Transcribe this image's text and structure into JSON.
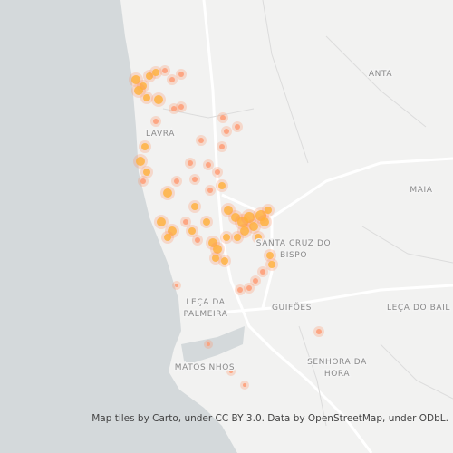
{
  "map": {
    "places": [
      {
        "lines": [
          "ANTA"
        ]
      },
      {
        "lines": [
          "LAVRA"
        ]
      },
      {
        "lines": [
          "MAIA"
        ]
      },
      {
        "lines": [
          "SANTA CRUZ DO",
          "BISPO"
        ]
      },
      {
        "lines": [
          "LEÇA DA",
          "PALMEIRA"
        ]
      },
      {
        "lines": [
          "GUIFÕES"
        ]
      },
      {
        "lines": [
          "LEÇA DO BAIL"
        ]
      },
      {
        "lines": [
          "SENHORA DA",
          "HORA"
        ]
      },
      {
        "lines": [
          "MATOSINHOS"
        ]
      }
    ],
    "attribution": "Map tiles by Carto, under CC BY 3.0. Data by OpenStreetMap, under ODbL."
  }
}
